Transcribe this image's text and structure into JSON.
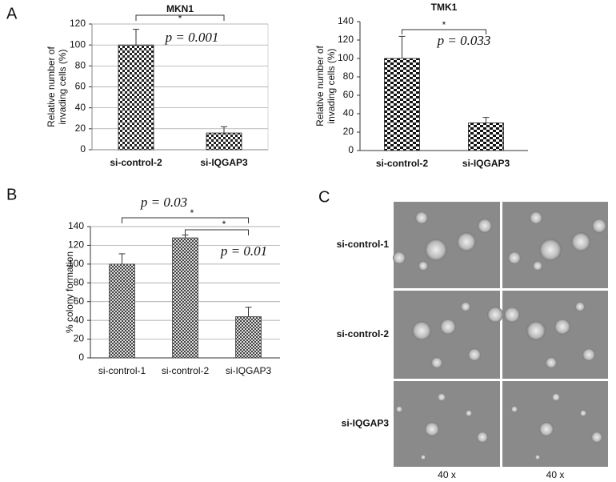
{
  "panels": [
    "A",
    "B",
    "C"
  ],
  "chart_data": [
    {
      "type": "bar",
      "title": "MKN1",
      "ylabel": [
        "Relative number of",
        "invading cells (%)"
      ],
      "categories": [
        "si-control-2",
        "si-IQGAP3"
      ],
      "values": [
        100,
        16
      ],
      "errors": [
        15,
        6
      ],
      "color": "#222222",
      "ylim": [
        0,
        120
      ],
      "yticks": [
        0,
        20,
        40,
        60,
        80,
        100,
        120
      ],
      "grid": true,
      "annotations": [
        "*",
        "p = 0.001"
      ]
    },
    {
      "type": "bar",
      "title": "TMK1",
      "ylabel": [
        "Relative number of",
        "invading cells (%)"
      ],
      "categories": [
        "si-control-2",
        "si-IQGAP3"
      ],
      "values": [
        100,
        30
      ],
      "errors": [
        24,
        6
      ],
      "color": "#222222",
      "ylim": [
        0,
        140
      ],
      "yticks": [
        0,
        20,
        40,
        60,
        80,
        100,
        120,
        140
      ],
      "grid": false,
      "annotations": [
        "*",
        "p = 0.033"
      ]
    },
    {
      "type": "bar",
      "ylabel": [
        "% colony formation"
      ],
      "categories": [
        "si-control-1",
        "si-control-2",
        "si-IQGAP3"
      ],
      "values": [
        100,
        128,
        44
      ],
      "errors": [
        11,
        3,
        10
      ],
      "color": "#444444",
      "ylim": [
        0,
        140
      ],
      "yticks": [
        0,
        20,
        40,
        60,
        80,
        100,
        120,
        140
      ],
      "grid": true,
      "annotations": [
        "p = 0.03",
        "*",
        "*",
        "p = 0.01"
      ]
    }
  ],
  "micrographs": {
    "rows": [
      "si-control-1",
      "si-control-2",
      "si-IQGAP3"
    ],
    "captions": [
      "40 x",
      "40 x"
    ]
  }
}
